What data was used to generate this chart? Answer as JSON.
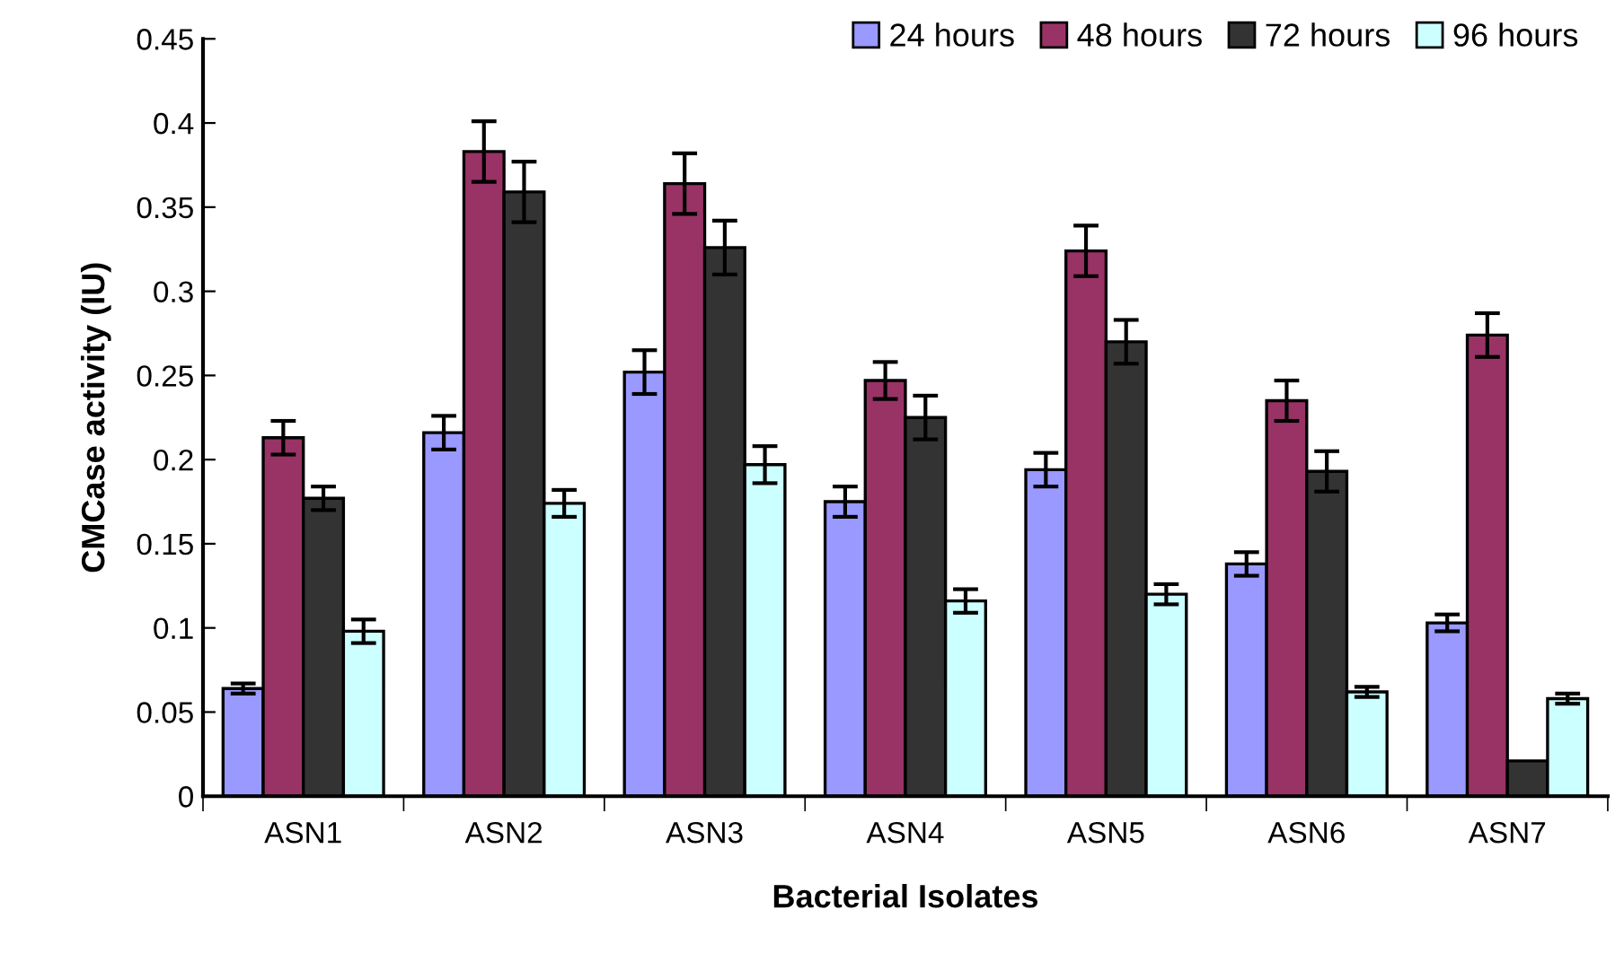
{
  "chart_data": {
    "type": "bar",
    "xlabel": "Bacterial Isolates",
    "ylabel": "CMCase activity (IU)",
    "categories": [
      "ASN1",
      "ASN2",
      "ASN3",
      "ASN4",
      "ASN5",
      "ASN6",
      "ASN7"
    ],
    "series": [
      {
        "name": "24 hours",
        "color": "#9999ff",
        "values": [
          0.064,
          0.216,
          0.252,
          0.175,
          0.194,
          0.138,
          0.103
        ],
        "errors": [
          0.003,
          0.01,
          0.013,
          0.009,
          0.01,
          0.007,
          0.005
        ]
      },
      {
        "name": "48 hours",
        "color": "#993366",
        "values": [
          0.213,
          0.383,
          0.364,
          0.247,
          0.324,
          0.235,
          0.274
        ],
        "errors": [
          0.01,
          0.018,
          0.018,
          0.011,
          0.015,
          0.012,
          0.013
        ]
      },
      {
        "name": "72 hours",
        "color": "#333333",
        "values": [
          0.177,
          0.359,
          0.326,
          0.225,
          0.27,
          0.193,
          0.021
        ],
        "errors": [
          0.007,
          0.018,
          0.016,
          0.013,
          0.013,
          0.012,
          null
        ]
      },
      {
        "name": "96 hours",
        "color": "#ccffff",
        "values": [
          0.098,
          0.174,
          0.197,
          0.116,
          0.12,
          0.062,
          0.058
        ],
        "errors": [
          0.007,
          0.008,
          0.011,
          0.007,
          0.006,
          0.003,
          0.003
        ]
      }
    ],
    "ylim": [
      0,
      0.45
    ],
    "yticks": [
      0,
      {
        "value": 0.05,
        "label": "0.05"
      },
      {
        "value": 0.1,
        "label": "0.1"
      },
      {
        "value": 0.15,
        "label": "0.15"
      },
      {
        "value": 0.2,
        "label": "0.2"
      },
      {
        "value": 0.25,
        "label": "0.25"
      },
      {
        "value": 0.3,
        "label": "0.3"
      },
      {
        "value": 0.35,
        "label": "0.35"
      },
      {
        "value": 0.4,
        "label": "0.4"
      },
      {
        "value": 0.45,
        "label": "0.45"
      }
    ],
    "grid": false,
    "legend": "top right"
  }
}
